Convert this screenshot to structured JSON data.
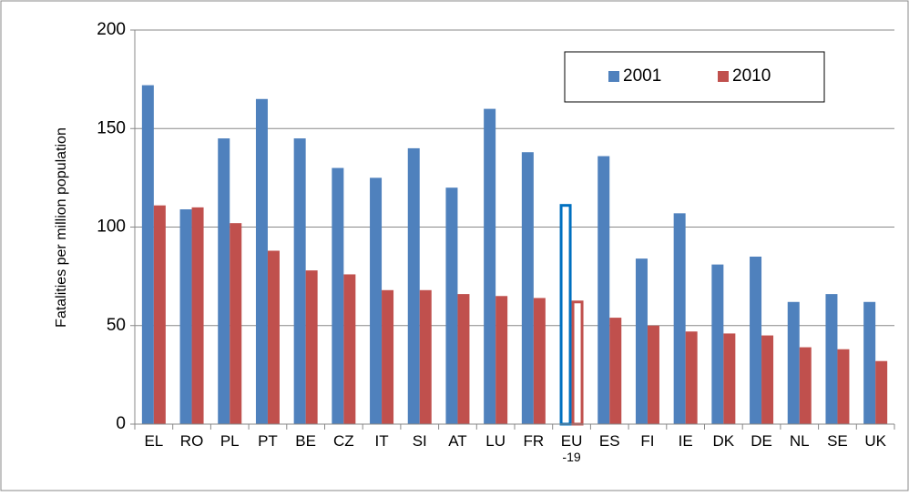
{
  "chart_data": {
    "type": "bar",
    "y_axis_label": "Fatalities per million population",
    "categories": [
      "EL",
      "RO",
      "PL",
      "PT",
      "BE",
      "CZ",
      "IT",
      "SI",
      "AT",
      "LU",
      "FR",
      "EU-19",
      "ES",
      "FI",
      "IE",
      "DK",
      "DE",
      "NL",
      "SE",
      "UK"
    ],
    "series": [
      {
        "name": "2001",
        "color": "#4f81bd",
        "values": [
          172,
          109,
          145,
          165,
          145,
          130,
          125,
          140,
          120,
          160,
          138,
          111,
          136,
          84,
          107,
          81,
          85,
          62,
          66,
          62
        ]
      },
      {
        "name": "2010",
        "color": "#c0504d",
        "values": [
          111,
          110,
          102,
          88,
          78,
          76,
          68,
          68,
          66,
          65,
          64,
          62,
          54,
          50,
          47,
          46,
          45,
          39,
          38,
          32
        ]
      }
    ],
    "hollow": [
      11
    ],
    "ylim": [
      0,
      200
    ],
    "yticks": [
      0,
      50,
      100,
      150,
      200
    ],
    "grid": true,
    "legend": "top-right"
  }
}
